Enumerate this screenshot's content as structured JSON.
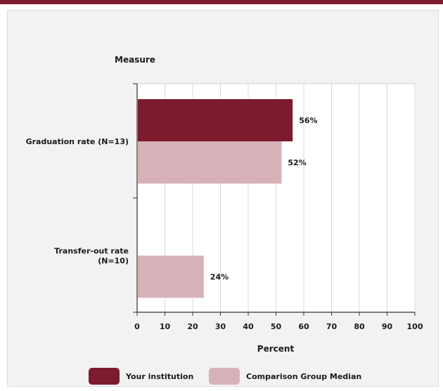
{
  "chart_data": {
    "type": "bar",
    "orientation": "horizontal",
    "title": "",
    "ylabel": "Measure",
    "xlabel": "Percent",
    "xlim": [
      0,
      100
    ],
    "x_ticks": [
      0,
      10,
      20,
      30,
      40,
      50,
      60,
      70,
      80,
      90,
      100
    ],
    "grid": true,
    "legend_position": "bottom",
    "categories": [
      "Graduation rate (N=13)",
      "Transfer-out rate (N=10)"
    ],
    "category_label_lines": [
      [
        "Graduation rate (N=13)"
      ],
      [
        "Transfer-out rate",
        "(N=10)"
      ]
    ],
    "series": [
      {
        "name": "Your institution",
        "color": "#7b1b2d",
        "values": [
          56,
          null
        ],
        "labels": [
          "56%",
          ""
        ]
      },
      {
        "name": "Comparison Group Median",
        "color": "#d6b2b8",
        "values": [
          52,
          24
        ],
        "labels": [
          "52%",
          "24%"
        ]
      }
    ]
  }
}
